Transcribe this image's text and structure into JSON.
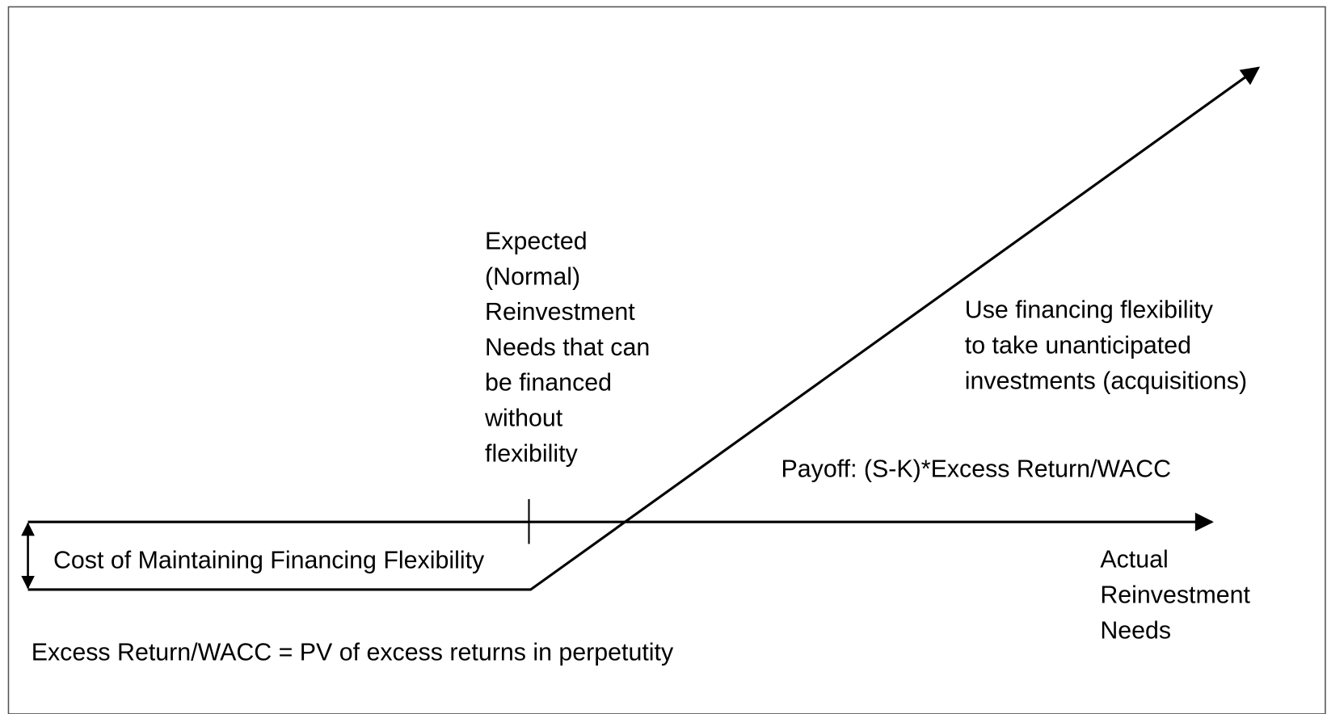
{
  "labels": {
    "expected_needs": [
      "Expected",
      "(Normal)",
      "Reinvestment",
      "Needs that can",
      "be financed",
      "without",
      "flexibility"
    ],
    "use_flexibility": [
      "Use financing flexibility",
      "to take unanticipated",
      "investments (acquisitions)"
    ],
    "payoff": "Payoff: (S-K)*Excess Return/WACC",
    "cost": "Cost of Maintaining Financing Flexibility",
    "x_axis": [
      "Actual",
      "Reinvestment",
      "Needs"
    ],
    "footnote": "Excess Return/WACC = PV of excess returns in perpetutity"
  }
}
